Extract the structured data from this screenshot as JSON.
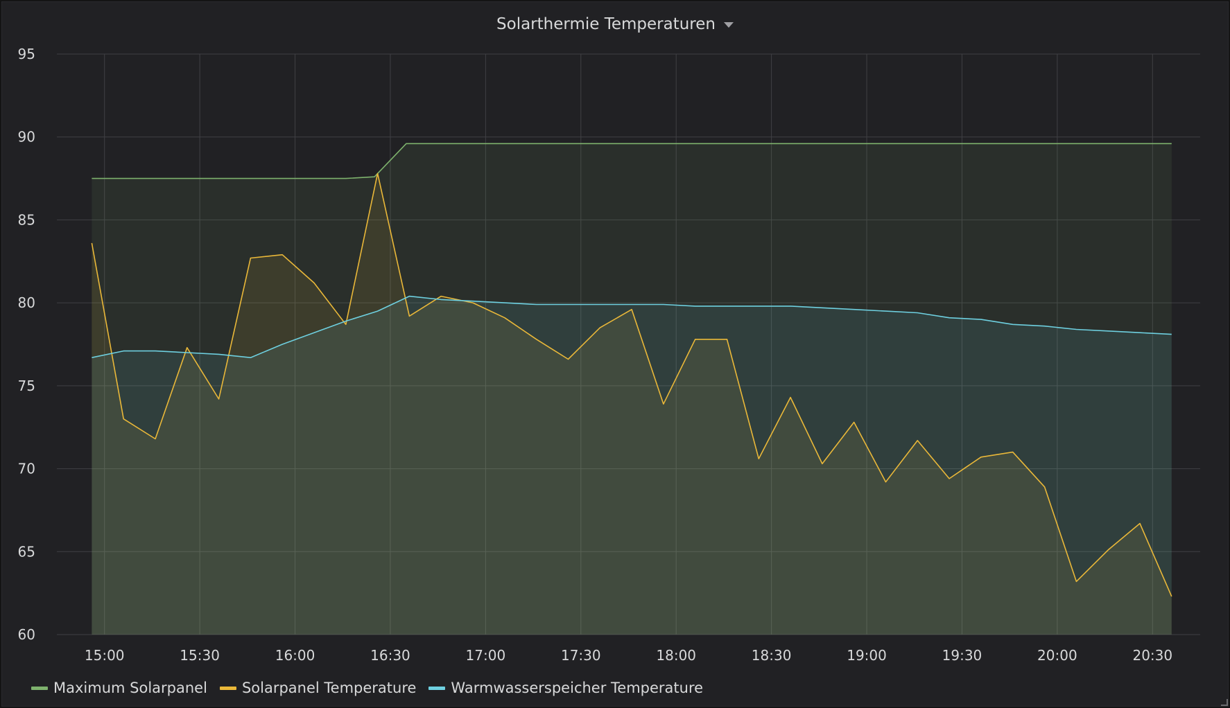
{
  "panel": {
    "title": "Solarthermie Temperaturen"
  },
  "colors": {
    "background": "#212124",
    "grid": "#404044",
    "text": "#d8d9da",
    "maximum": "#7eb26d",
    "solarpanel": "#eab839",
    "speicher": "#6ed0e0"
  },
  "chart_data": {
    "type": "area",
    "title": "Solarthermie Temperaturen",
    "xlabel": "",
    "ylabel": "",
    "ylim": [
      60,
      95
    ],
    "yticks": [
      "60",
      "65",
      "70",
      "75",
      "80",
      "85",
      "90",
      "95"
    ],
    "xlim": [
      "14:45",
      "20:45"
    ],
    "xticks": [
      "15:00",
      "15:30",
      "16:00",
      "16:30",
      "17:00",
      "17:30",
      "18:00",
      "18:30",
      "19:00",
      "19:30",
      "20:00",
      "20:30"
    ],
    "grid": true,
    "legend_position": "bottom-left",
    "series": [
      {
        "name": "Maximum Solarpanel",
        "color": "#7eb26d",
        "points": [
          [
            "14:56",
            87.5
          ],
          [
            "16:16",
            87.5
          ],
          [
            "16:25",
            87.6
          ],
          [
            "16:35",
            89.6
          ],
          [
            "20:36",
            89.6
          ]
        ]
      },
      {
        "name": "Solarpanel Temperature",
        "color": "#eab839",
        "points": [
          [
            "14:56",
            83.6
          ],
          [
            "15:06",
            73.0
          ],
          [
            "15:16",
            71.8
          ],
          [
            "15:26",
            77.3
          ],
          [
            "15:36",
            74.2
          ],
          [
            "15:46",
            82.7
          ],
          [
            "15:56",
            82.9
          ],
          [
            "16:06",
            81.2
          ],
          [
            "16:16",
            78.7
          ],
          [
            "16:26",
            87.8
          ],
          [
            "16:36",
            79.2
          ],
          [
            "16:46",
            80.4
          ],
          [
            "16:56",
            80.0
          ],
          [
            "17:06",
            79.1
          ],
          [
            "17:16",
            77.8
          ],
          [
            "17:26",
            76.6
          ],
          [
            "17:36",
            78.5
          ],
          [
            "17:46",
            79.6
          ],
          [
            "17:56",
            73.9
          ],
          [
            "18:06",
            77.8
          ],
          [
            "18:16",
            77.8
          ],
          [
            "18:26",
            70.6
          ],
          [
            "18:36",
            74.3
          ],
          [
            "18:46",
            70.3
          ],
          [
            "18:56",
            72.8
          ],
          [
            "19:06",
            69.2
          ],
          [
            "19:16",
            71.7
          ],
          [
            "19:26",
            69.4
          ],
          [
            "19:36",
            70.7
          ],
          [
            "19:46",
            71.0
          ],
          [
            "19:56",
            68.9
          ],
          [
            "20:06",
            63.2
          ],
          [
            "20:16",
            65.1
          ],
          [
            "20:26",
            66.7
          ],
          [
            "20:36",
            62.3
          ]
        ]
      },
      {
        "name": "Warmwasserspeicher Temperature",
        "color": "#6ed0e0",
        "points": [
          [
            "14:56",
            76.7
          ],
          [
            "15:06",
            77.1
          ],
          [
            "15:16",
            77.1
          ],
          [
            "15:26",
            77.0
          ],
          [
            "15:36",
            76.9
          ],
          [
            "15:46",
            76.7
          ],
          [
            "15:56",
            77.5
          ],
          [
            "16:06",
            78.2
          ],
          [
            "16:16",
            78.9
          ],
          [
            "16:26",
            79.5
          ],
          [
            "16:36",
            80.4
          ],
          [
            "16:46",
            80.2
          ],
          [
            "16:56",
            80.1
          ],
          [
            "17:06",
            80.0
          ],
          [
            "17:16",
            79.9
          ],
          [
            "17:26",
            79.9
          ],
          [
            "17:36",
            79.9
          ],
          [
            "17:46",
            79.9
          ],
          [
            "17:56",
            79.9
          ],
          [
            "18:06",
            79.8
          ],
          [
            "18:16",
            79.8
          ],
          [
            "18:26",
            79.8
          ],
          [
            "18:36",
            79.8
          ],
          [
            "18:46",
            79.7
          ],
          [
            "18:56",
            79.6
          ],
          [
            "19:06",
            79.5
          ],
          [
            "19:16",
            79.4
          ],
          [
            "19:26",
            79.1
          ],
          [
            "19:36",
            79.0
          ],
          [
            "19:46",
            78.7
          ],
          [
            "19:56",
            78.6
          ],
          [
            "20:06",
            78.4
          ],
          [
            "20:16",
            78.3
          ],
          [
            "20:26",
            78.2
          ],
          [
            "20:36",
            78.1
          ]
        ]
      }
    ]
  }
}
